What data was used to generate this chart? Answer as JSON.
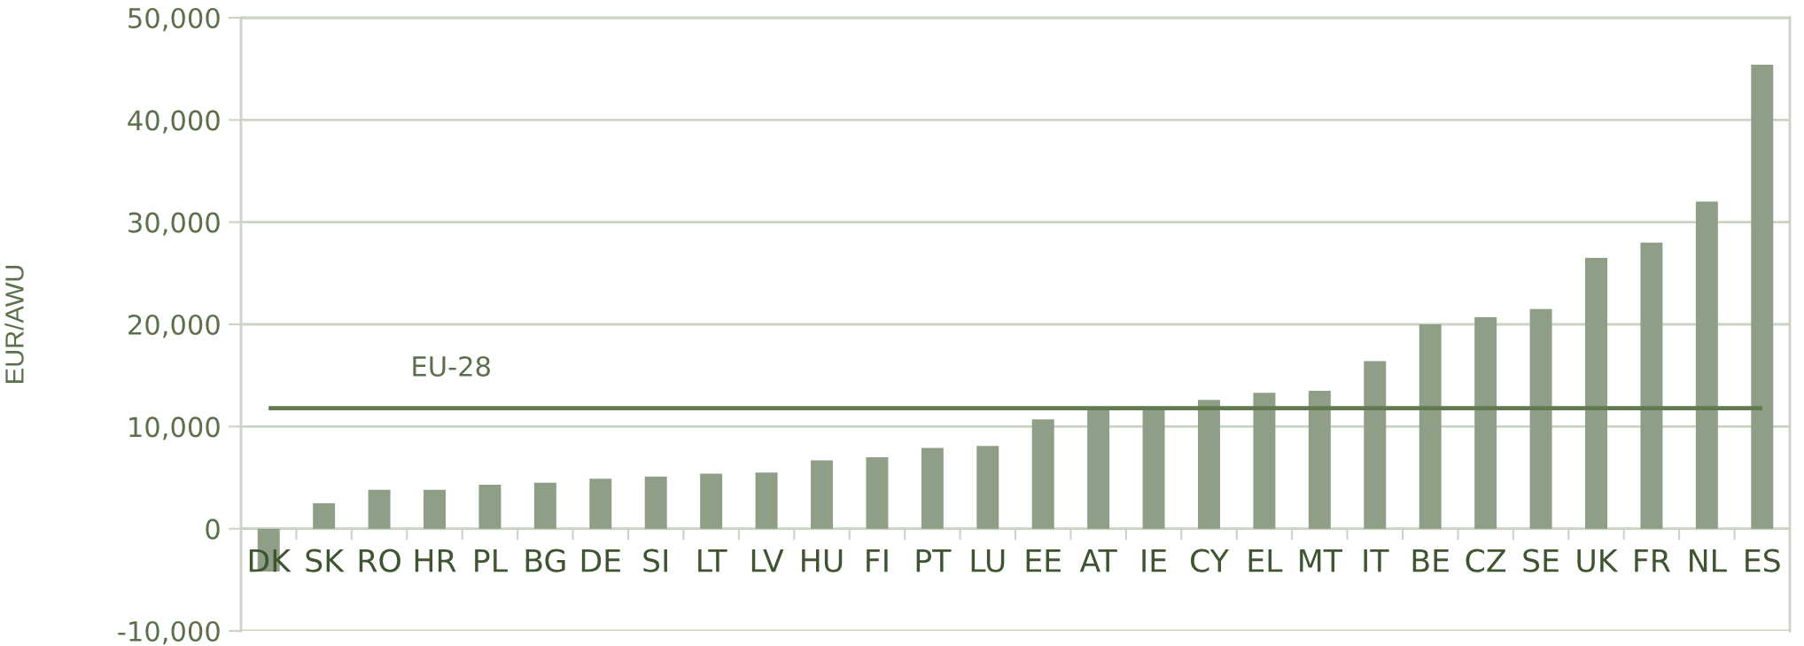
{
  "chart_data": {
    "type": "bar",
    "ylabel": "EUR/AWU",
    "categories": [
      "DK",
      "SK",
      "RO",
      "HR",
      "PL",
      "BG",
      "DE",
      "SI",
      "LT",
      "LV",
      "HU",
      "FI",
      "PT",
      "LU",
      "EE",
      "AT",
      "IE",
      "CY",
      "EL",
      "MT",
      "IT",
      "BE",
      "CZ",
      "SE",
      "UK",
      "FR",
      "NL",
      "ES"
    ],
    "values": [
      -4200,
      2500,
      3800,
      3800,
      4300,
      4500,
      4900,
      5100,
      5400,
      5500,
      6700,
      7000,
      7900,
      8100,
      10700,
      11700,
      11700,
      12600,
      13300,
      13500,
      16400,
      20000,
      20700,
      21500,
      26500,
      28000,
      32000,
      45400
    ],
    "color": "#8f9f87",
    "ylim": [
      -10000,
      50000
    ],
    "yticks": [
      {
        "value": -10000,
        "label": "-10,000"
      },
      0,
      {
        "value": 10000,
        "label": "10,000"
      },
      {
        "value": 20000,
        "label": "20,000"
      },
      {
        "value": 30000,
        "label": "30,000"
      },
      {
        "value": 40000,
        "label": "40,000"
      },
      {
        "value": 50000,
        "label": "50,000"
      }
    ],
    "grid": "y",
    "ref_lines": [
      {
        "axis": "y",
        "value": 11800,
        "label": "EU-28",
        "color": "#627a50"
      }
    ]
  }
}
